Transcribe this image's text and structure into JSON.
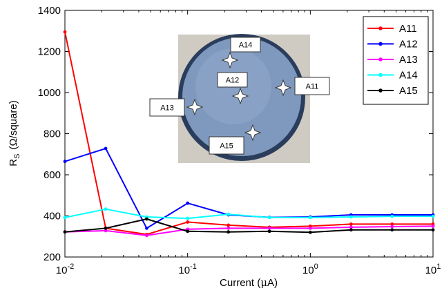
{
  "chart_data": {
    "type": "line",
    "xlabel_main": "Current (",
    "xlabel_mu": "μ",
    "xlabel_unit": "A)",
    "ylabel_main": "R",
    "ylabel_sub": "S",
    "ylabel_unit": "(Ω/square)",
    "xscale": "log",
    "xlim": [
      0.01,
      10
    ],
    "ylim": [
      200,
      1400
    ],
    "grid": false,
    "legend_position": "top-right",
    "y_ticks": [
      200,
      400,
      600,
      800,
      1000,
      1200,
      1400
    ],
    "x_ticks": [
      {
        "value": 0.01,
        "base": "10",
        "exp": "-2"
      },
      {
        "value": 0.1,
        "base": "10",
        "exp": "-1"
      },
      {
        "value": 1,
        "base": "10",
        "exp": "0"
      },
      {
        "value": 10,
        "base": "10",
        "exp": "1"
      }
    ],
    "x": [
      0.01,
      0.0215,
      0.0464,
      0.1,
      0.215,
      0.464,
      1,
      2.15,
      4.64,
      10
    ],
    "series": [
      {
        "name": "A11",
        "color": "#ff0000",
        "values": [
          1295,
          340,
          310,
          370,
          355,
          345,
          350,
          360,
          360,
          360
        ]
      },
      {
        "name": "A12",
        "color": "#0000ff",
        "values": [
          665,
          728,
          340,
          462,
          405,
          393,
          395,
          405,
          405,
          405
        ]
      },
      {
        "name": "A13",
        "color": "#ff00ff",
        "values": [
          322,
          328,
          305,
          335,
          340,
          340,
          340,
          345,
          348,
          350
        ]
      },
      {
        "name": "A14",
        "color": "#00ffff",
        "values": [
          392,
          433,
          395,
          388,
          408,
          392,
          392,
          395,
          398,
          398
        ]
      },
      {
        "name": "A15",
        "color": "#000000",
        "values": [
          322,
          340,
          385,
          325,
          322,
          325,
          320,
          332,
          332,
          332
        ]
      }
    ],
    "inset": {
      "labels": [
        "A14",
        "A12",
        "A11",
        "A13",
        "A15"
      ]
    }
  }
}
